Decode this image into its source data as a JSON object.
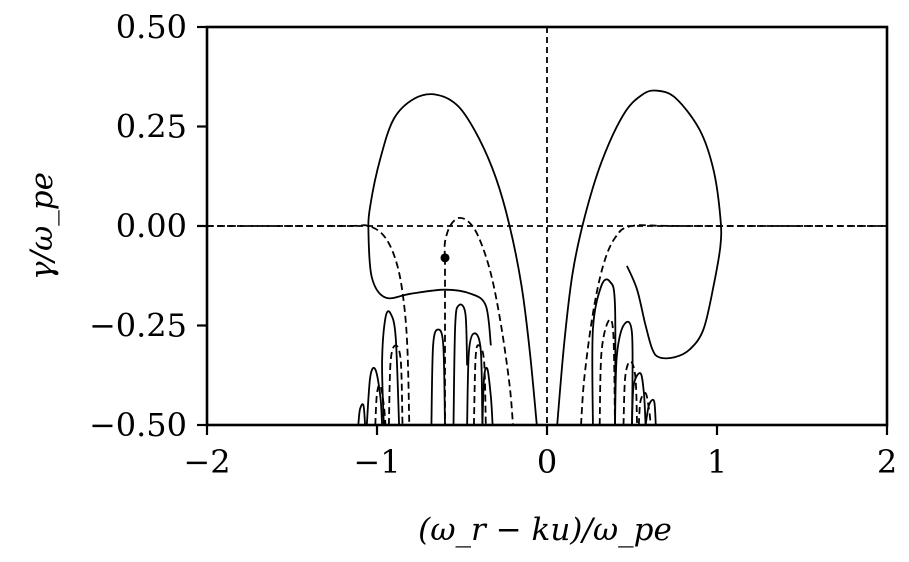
{
  "chart_data": {
    "type": "line",
    "xlabel": "(ω_r − ku)/ω_pe",
    "ylabel": "γ/ω_pe",
    "xlim": [
      -2,
      2
    ],
    "ylim": [
      -0.5,
      0.5
    ],
    "x_ticks": [
      -2,
      -1,
      0,
      1,
      2
    ],
    "x_tick_labels": [
      "−2",
      "−1",
      "0",
      "1",
      "2"
    ],
    "y_ticks": [
      -0.5,
      -0.25,
      0.0,
      0.25,
      0.5
    ],
    "y_tick_labels": [
      "−0.50",
      "−0.25",
      "0.00",
      "0.25",
      "0.50"
    ],
    "grid": false,
    "reference_lines": [
      {
        "orientation": "vertical",
        "value": 0,
        "style": "dashed"
      },
      {
        "orientation": "horizontal",
        "value": 0,
        "style": "dashed"
      }
    ],
    "marked_point": {
      "x": -0.6,
      "y": -0.08
    },
    "contours": {
      "solid": [
        [
          [
            -0.33,
            -0.3
          ],
          [
            -0.36,
            -0.2
          ],
          [
            -0.45,
            -0.17
          ],
          [
            -0.6,
            -0.16
          ],
          [
            -0.8,
            -0.17
          ],
          [
            -0.95,
            -0.18
          ],
          [
            -1.03,
            -0.13
          ],
          [
            -1.05,
            -0.02
          ],
          [
            -1.04,
            0.05
          ],
          [
            -0.98,
            0.17
          ],
          [
            -0.9,
            0.27
          ],
          [
            -0.78,
            0.32
          ],
          [
            -0.65,
            0.33
          ],
          [
            -0.52,
            0.3
          ],
          [
            -0.4,
            0.22
          ],
          [
            -0.3,
            0.12
          ],
          [
            -0.22,
            0.0
          ],
          [
            -0.15,
            -0.15
          ],
          [
            -0.1,
            -0.32
          ],
          [
            -0.06,
            -0.5
          ]
        ],
        [
          [
            0.06,
            -0.5
          ],
          [
            0.1,
            -0.3
          ],
          [
            0.15,
            -0.12
          ],
          [
            0.22,
            0.02
          ],
          [
            0.32,
            0.16
          ],
          [
            0.45,
            0.28
          ],
          [
            0.56,
            0.33
          ],
          [
            0.65,
            0.34
          ],
          [
            0.76,
            0.32
          ],
          [
            0.9,
            0.24
          ],
          [
            0.98,
            0.14
          ],
          [
            1.02,
            0.02
          ],
          [
            1.02,
            -0.05
          ],
          [
            0.98,
            -0.15
          ],
          [
            0.92,
            -0.26
          ],
          [
            0.84,
            -0.31
          ],
          [
            0.75,
            -0.33
          ],
          [
            0.66,
            -0.33
          ],
          [
            0.62,
            -0.31
          ],
          [
            0.58,
            -0.25
          ],
          [
            0.53,
            -0.16
          ],
          [
            0.47,
            -0.1
          ]
        ],
        [
          [
            -0.96,
            -0.5
          ],
          [
            -0.97,
            -0.34
          ],
          [
            -0.95,
            -0.23
          ],
          [
            -0.92,
            -0.22
          ],
          [
            -0.89,
            -0.28
          ],
          [
            -0.87,
            -0.5
          ]
        ],
        [
          [
            -1.06,
            -0.5
          ],
          [
            -1.04,
            -0.38
          ],
          [
            -1.01,
            -0.36
          ],
          [
            -0.98,
            -0.43
          ],
          [
            -0.97,
            -0.5
          ]
        ],
        [
          [
            -1.11,
            -0.5
          ],
          [
            -1.1,
            -0.46
          ],
          [
            -1.08,
            -0.45
          ],
          [
            -1.07,
            -0.5
          ]
        ],
        [
          [
            -0.47,
            -0.5
          ],
          [
            -0.46,
            -0.32
          ],
          [
            -0.43,
            -0.27
          ],
          [
            -0.39,
            -0.31
          ],
          [
            -0.38,
            -0.5
          ]
        ],
        [
          [
            -0.55,
            -0.5
          ],
          [
            -0.54,
            -0.25
          ],
          [
            -0.52,
            -0.2
          ],
          [
            -0.48,
            -0.22
          ],
          [
            -0.47,
            -0.35
          ]
        ],
        [
          [
            -0.38,
            -0.5
          ],
          [
            -0.37,
            -0.38
          ],
          [
            -0.35,
            -0.36
          ],
          [
            -0.33,
            -0.43
          ],
          [
            -0.32,
            -0.5
          ]
        ],
        [
          [
            0.27,
            -0.5
          ],
          [
            0.27,
            -0.26
          ],
          [
            0.32,
            -0.15
          ],
          [
            0.37,
            -0.14
          ],
          [
            0.4,
            -0.2
          ],
          [
            0.4,
            -0.5
          ]
        ],
        [
          [
            0.4,
            -0.5
          ],
          [
            0.41,
            -0.33
          ],
          [
            0.45,
            -0.25
          ],
          [
            0.5,
            -0.27
          ],
          [
            0.5,
            -0.5
          ]
        ],
        [
          [
            0.5,
            -0.5
          ],
          [
            0.51,
            -0.4
          ],
          [
            0.55,
            -0.37
          ],
          [
            0.57,
            -0.42
          ],
          [
            0.58,
            -0.5
          ]
        ],
        [
          [
            0.58,
            -0.5
          ],
          [
            0.6,
            -0.45
          ],
          [
            0.63,
            -0.44
          ],
          [
            0.64,
            -0.5
          ]
        ],
        [
          [
            -0.68,
            -0.5
          ],
          [
            -0.67,
            -0.3
          ],
          [
            -0.64,
            -0.26
          ],
          [
            -0.61,
            -0.3
          ],
          [
            -0.6,
            -0.5
          ]
        ]
      ],
      "dashed": [
        [
          [
            -2,
            0
          ],
          [
            -1.2,
            0
          ],
          [
            -1.05,
            0.0
          ],
          [
            -0.95,
            -0.03
          ],
          [
            -0.88,
            -0.1
          ],
          [
            -0.84,
            -0.2
          ],
          [
            -0.82,
            -0.32
          ],
          [
            -0.81,
            -0.5
          ]
        ],
        [
          [
            -0.6,
            -0.08
          ],
          [
            -0.6,
            -0.04
          ],
          [
            -0.57,
            0.0
          ],
          [
            -0.52,
            0.02
          ],
          [
            -0.46,
            0.01
          ],
          [
            -0.4,
            -0.03
          ],
          [
            -0.33,
            -0.12
          ],
          [
            -0.27,
            -0.25
          ],
          [
            -0.22,
            -0.4
          ],
          [
            -0.2,
            -0.5
          ]
        ],
        [
          [
            -0.6,
            -0.08
          ],
          [
            -0.6,
            -0.2
          ],
          [
            -0.6,
            -0.35
          ],
          [
            -0.6,
            -0.5
          ]
        ],
        [
          [
            0.2,
            -0.5
          ],
          [
            0.22,
            -0.38
          ],
          [
            0.27,
            -0.22
          ],
          [
            0.33,
            -0.1
          ],
          [
            0.4,
            -0.03
          ],
          [
            0.5,
            0.0
          ],
          [
            0.8,
            0.0
          ],
          [
            2,
            0
          ]
        ],
        [
          [
            -0.93,
            -0.5
          ],
          [
            -0.92,
            -0.34
          ],
          [
            -0.89,
            -0.3
          ],
          [
            -0.86,
            -0.34
          ],
          [
            -0.85,
            -0.5
          ]
        ],
        [
          [
            -1.01,
            -0.5
          ],
          [
            -1.0,
            -0.42
          ],
          [
            -0.98,
            -0.4
          ],
          [
            -0.96,
            -0.45
          ],
          [
            -0.95,
            -0.5
          ]
        ],
        [
          [
            -0.43,
            -0.5
          ],
          [
            -0.42,
            -0.33
          ],
          [
            -0.4,
            -0.3
          ],
          [
            -0.37,
            -0.34
          ],
          [
            -0.36,
            -0.5
          ]
        ],
        [
          [
            0.31,
            -0.5
          ],
          [
            0.32,
            -0.32
          ],
          [
            0.36,
            -0.24
          ],
          [
            0.39,
            -0.27
          ],
          [
            0.4,
            -0.5
          ]
        ],
        [
          [
            0.45,
            -0.5
          ],
          [
            0.46,
            -0.38
          ],
          [
            0.49,
            -0.34
          ],
          [
            0.52,
            -0.38
          ],
          [
            0.53,
            -0.5
          ]
        ],
        [
          [
            0.54,
            -0.5
          ],
          [
            0.55,
            -0.44
          ],
          [
            0.58,
            -0.42
          ],
          [
            0.6,
            -0.46
          ],
          [
            0.61,
            -0.5
          ]
        ]
      ]
    }
  }
}
